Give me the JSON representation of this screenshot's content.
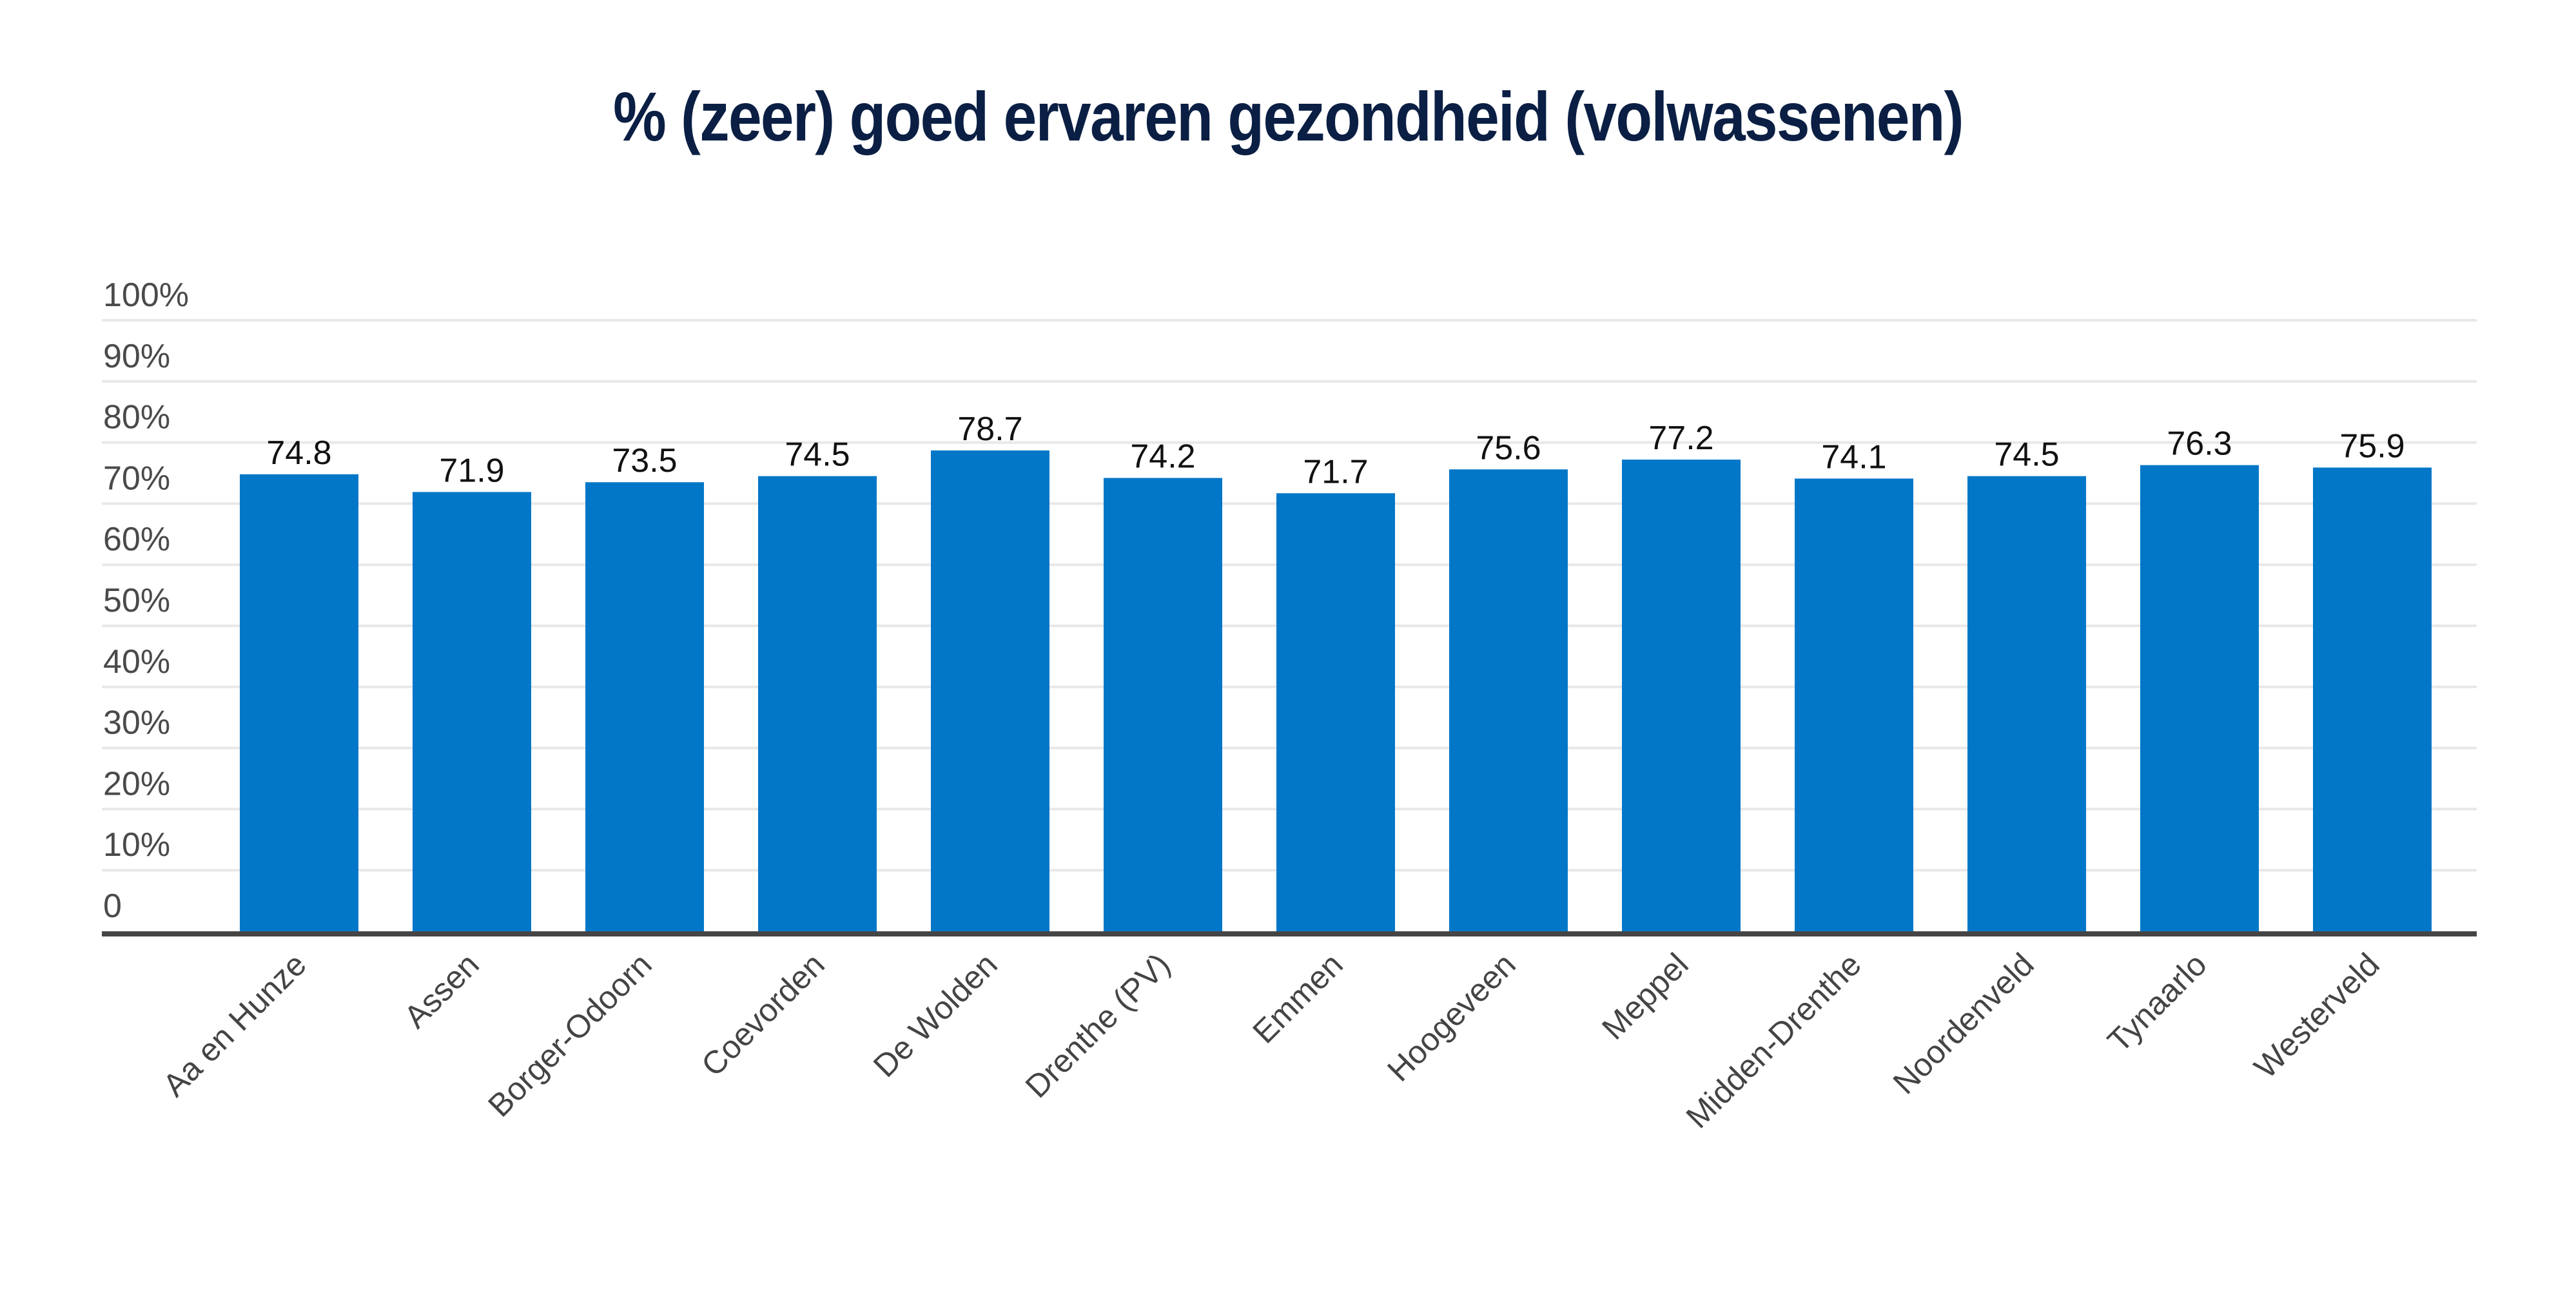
{
  "chart_data": {
    "type": "bar",
    "title": "% (zeer) goed ervaren gezondheid (volwassenen)",
    "xlabel": "",
    "ylabel": "",
    "ylim": [
      0,
      100
    ],
    "grid": true,
    "legend": "none",
    "y_ticks": [
      0,
      10,
      20,
      30,
      40,
      50,
      60,
      70,
      80,
      90,
      100
    ],
    "y_tick_labels": [
      "0",
      "10%",
      "20%",
      "30%",
      "40%",
      "50%",
      "60%",
      "70%",
      "80%",
      "90%",
      "100%"
    ],
    "categories": [
      "Aa en Hunze",
      "Assen",
      "Borger-Odoorn",
      "Coevorden",
      "De Wolden",
      "Drenthe (PV)",
      "Emmen",
      "Hoogeveen",
      "Meppel",
      "Midden-Drenthe",
      "Noordenveld",
      "Tynaarlo",
      "Westerveld"
    ],
    "values": [
      74.8,
      71.9,
      73.5,
      74.5,
      78.7,
      74.2,
      71.7,
      75.6,
      77.2,
      74.1,
      74.5,
      76.3,
      75.9
    ],
    "value_labels": [
      "74.8",
      "71.9",
      "73.5",
      "74.5",
      "78.7",
      "74.2",
      "71.7",
      "75.6",
      "77.2",
      "74.1",
      "74.5",
      "76.3",
      "75.9"
    ],
    "colors": {
      "bar": "#0277c8",
      "title": "#0b1f44",
      "grid": "#e8e8e8",
      "axis": "#454545"
    }
  }
}
